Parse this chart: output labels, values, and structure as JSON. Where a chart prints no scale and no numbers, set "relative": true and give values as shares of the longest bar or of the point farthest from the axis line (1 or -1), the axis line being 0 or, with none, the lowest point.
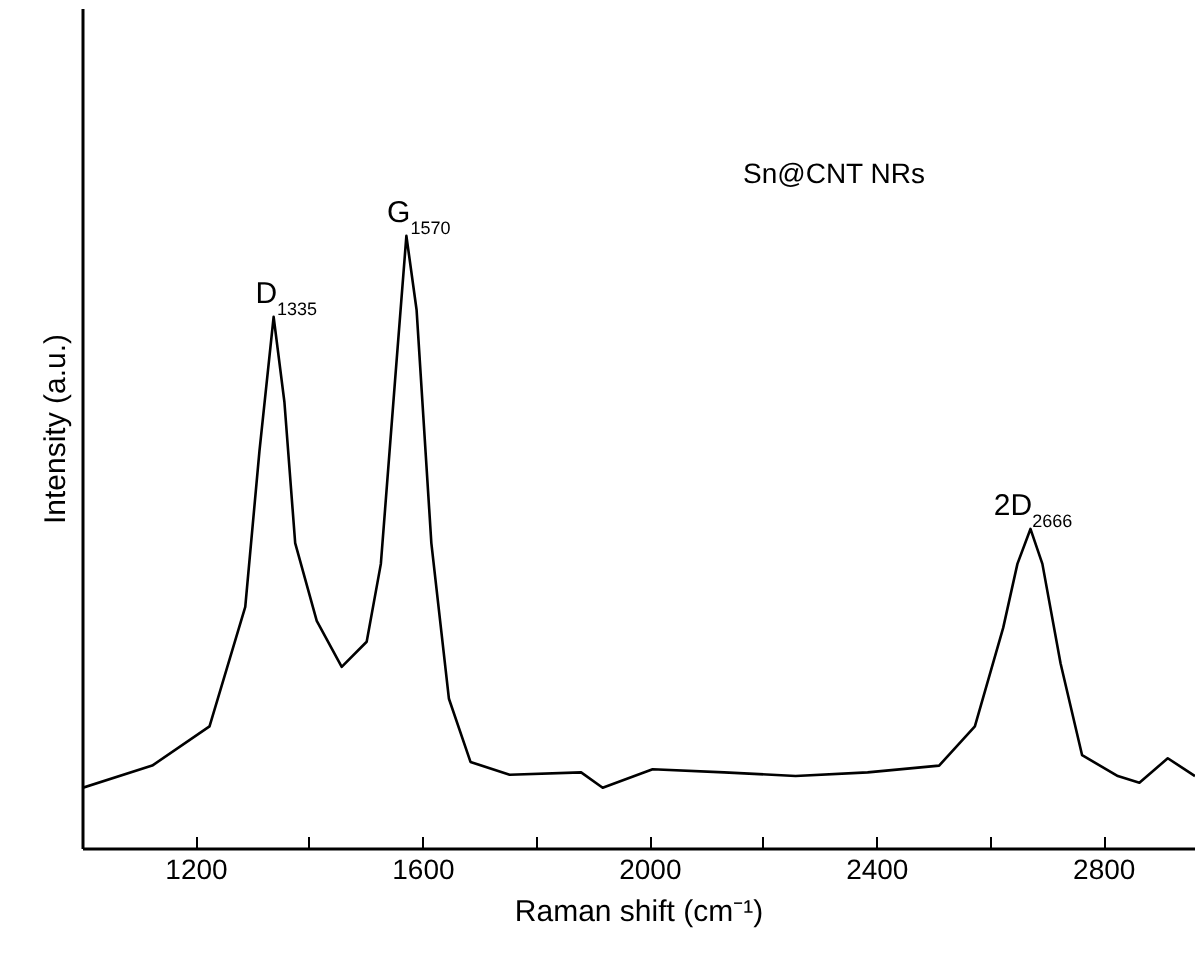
{
  "chart_data": {
    "type": "line",
    "relative": true,
    "xlabel": "Raman shift (cm⁻¹)",
    "ylabel": "Intensity (a.u.)",
    "xlim": [
      1000,
      2960
    ],
    "xticks": [
      1200,
      {
        "value": 1400,
        "label": null
      },
      1600,
      {
        "value": 1800,
        "label": null
      },
      2000,
      {
        "value": 2200,
        "label": null
      },
      2400,
      {
        "value": 2600,
        "label": null
      },
      2800
    ],
    "grid": false,
    "marker": "none",
    "line_style": "solid",
    "x": [
      1000,
      1122,
      1223,
      1286,
      1311,
      1336,
      1355,
      1374,
      1412,
      1456,
      1500,
      1525,
      1550,
      1570,
      1588,
      1614,
      1645,
      1683,
      1752,
      1878,
      1916,
      2004,
      2130,
      2256,
      2383,
      2509,
      2572,
      2622,
      2647,
      2670,
      2691,
      2723,
      2761,
      2824,
      2862,
      2912,
      2960
    ],
    "series": [
      {
        "color": "#000000",
        "values": [
          0.1,
          0.136,
          0.2,
          0.395,
          0.649,
          0.868,
          0.729,
          0.499,
          0.372,
          0.297,
          0.338,
          0.465,
          0.764,
          1.0,
          0.879,
          0.499,
          0.245,
          0.142,
          0.121,
          0.125,
          0.1,
          0.13,
          0.125,
          0.119,
          0.125,
          0.136,
          0.2,
          0.361,
          0.465,
          0.522,
          0.465,
          0.303,
          0.153,
          0.119,
          0.108,
          0.148,
          0.119
        ]
      }
    ],
    "annotations": [
      "Sn@CNT NRs",
      {
        "text": "D$_{1335}$",
        "x": 1335,
        "y": 0.868
      },
      {
        "text": "G$_{1570}$",
        "x": 1570,
        "y": 1.0
      },
      {
        "text": "2D$_{2666}$",
        "x": 2666,
        "y": 0.522
      }
    ]
  }
}
